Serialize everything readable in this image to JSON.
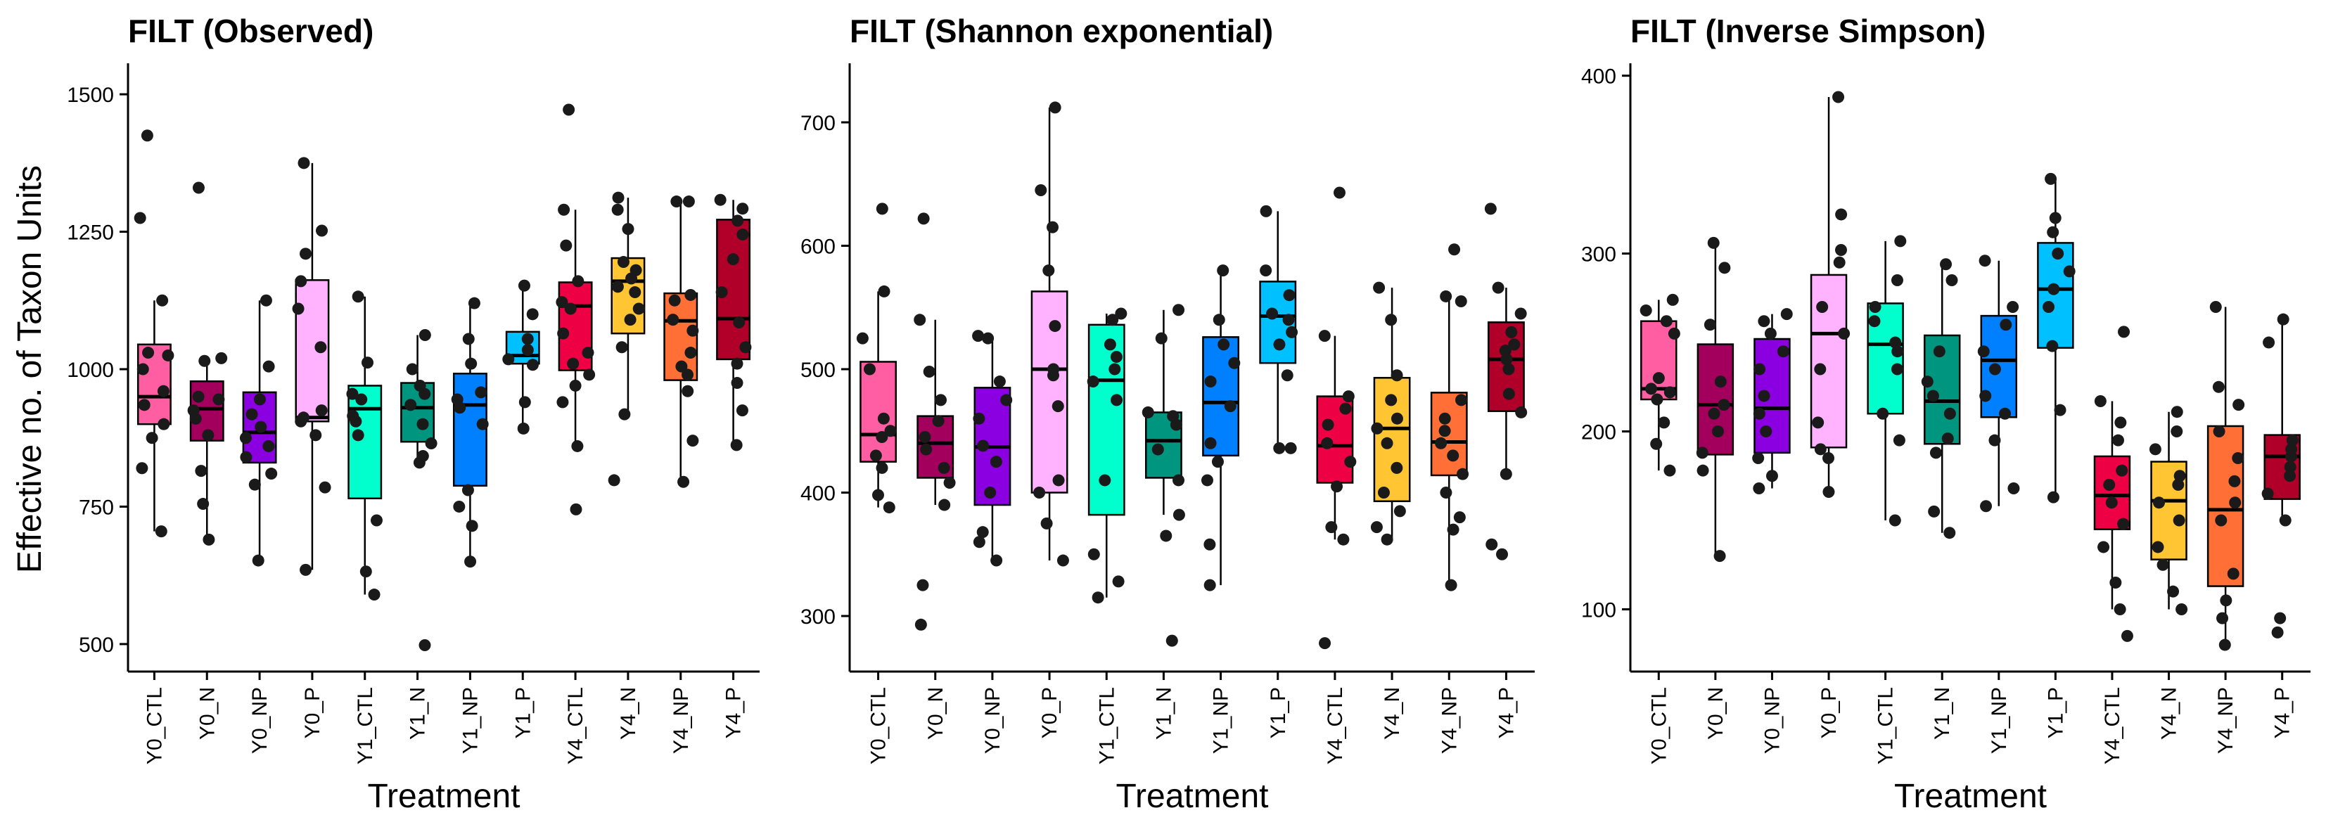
{
  "chart_data": [
    {
      "type": "box",
      "title": "FILT (Observed)",
      "xlabel": "Treatment",
      "ylabel": "Effective no. of Taxon Units",
      "categories": [
        "Y0_CTL",
        "Y0_N",
        "Y0_NP",
        "Y0_P",
        "Y1_CTL",
        "Y1_N",
        "Y1_NP",
        "Y1_P",
        "Y4_CTL",
        "Y4_N",
        "Y4_NP",
        "Y4_P"
      ],
      "colors": [
        "#FF5FA2",
        "#A3005D",
        "#8B00E0",
        "#FFB3FF",
        "#00FFCC",
        "#00957F",
        "#0080FF",
        "#00C0FF",
        "#EE0044",
        "#FFC533",
        "#FF6F36",
        "#B0002A"
      ],
      "ylim": [
        450,
        1550
      ],
      "yticks": [
        500,
        750,
        1000,
        1250,
        1500
      ],
      "boxes": [
        {
          "q1": 900,
          "median": 950,
          "q3": 1045,
          "wlow": 705,
          "whigh": 1125,
          "outliers": [
            1275,
            1425
          ]
        },
        {
          "q1": 870,
          "median": 928,
          "q3": 978,
          "wlow": 690,
          "whigh": 1020,
          "outliers": [
            1330
          ]
        },
        {
          "q1": 830,
          "median": 885,
          "q3": 958,
          "wlow": 652,
          "whigh": 1125,
          "outliers": []
        },
        {
          "q1": 905,
          "median": 912,
          "q3": 1162,
          "wlow": 635,
          "whigh": 1375,
          "outliers": []
        },
        {
          "q1": 765,
          "median": 928,
          "q3": 970,
          "wlow": 590,
          "whigh": 1132,
          "outliers": []
        },
        {
          "q1": 868,
          "median": 930,
          "q3": 975,
          "wlow": 835,
          "whigh": 1062,
          "outliers": [
            498
          ]
        },
        {
          "q1": 788,
          "median": 935,
          "q3": 992,
          "wlow": 650,
          "whigh": 1120,
          "outliers": []
        },
        {
          "q1": 1010,
          "median": 1025,
          "q3": 1068,
          "wlow": 892,
          "whigh": 1152,
          "outliers": []
        },
        {
          "q1": 998,
          "median": 1115,
          "q3": 1158,
          "wlow": 860,
          "whigh": 1290,
          "outliers": [
            745,
            1472
          ]
        },
        {
          "q1": 1065,
          "median": 1160,
          "q3": 1202,
          "wlow": 918,
          "whigh": 1312,
          "outliers": [
            798
          ]
        },
        {
          "q1": 980,
          "median": 1088,
          "q3": 1138,
          "wlow": 795,
          "whigh": 1305,
          "outliers": []
        },
        {
          "q1": 1018,
          "median": 1092,
          "q3": 1272,
          "wlow": 862,
          "whigh": 1308,
          "outliers": []
        }
      ],
      "points": [
        [
          705,
          820,
          875,
          900,
          935,
          960,
          1000,
          1025,
          1030,
          1125,
          1275,
          1425
        ],
        [
          690,
          755,
          815,
          880,
          910,
          925,
          945,
          950,
          1015,
          1020,
          1330
        ],
        [
          652,
          790,
          810,
          840,
          860,
          875,
          895,
          918,
          945,
          1005,
          1125
        ],
        [
          635,
          785,
          880,
          905,
          912,
          925,
          1040,
          1110,
          1160,
          1210,
          1252,
          1375
        ],
        [
          590,
          632,
          725,
          880,
          905,
          915,
          945,
          955,
          1012,
          1132
        ],
        [
          498,
          830,
          842,
          865,
          900,
          935,
          955,
          970,
          1000,
          1062
        ],
        [
          650,
          715,
          750,
          780,
          900,
          930,
          945,
          958,
          1010,
          1055,
          1120
        ],
        [
          892,
          940,
          1008,
          1018,
          1035,
          1055,
          1100,
          1152
        ],
        [
          745,
          860,
          940,
          970,
          990,
          1010,
          1030,
          1065,
          1110,
          1122,
          1160,
          1225,
          1290,
          1472
        ],
        [
          798,
          918,
          1040,
          1090,
          1110,
          1140,
          1150,
          1165,
          1180,
          1195,
          1255,
          1290,
          1312
        ],
        [
          795,
          870,
          960,
          990,
          1005,
          1030,
          1070,
          1090,
          1125,
          1135,
          1305,
          1305
        ],
        [
          862,
          925,
          975,
          1010,
          1040,
          1085,
          1140,
          1200,
          1245,
          1270,
          1292,
          1308
        ]
      ]
    },
    {
      "type": "box",
      "title": "FILT (Shannon exponential)",
      "xlabel": "Treatment",
      "ylabel": "",
      "categories": [
        "Y0_CTL",
        "Y0_N",
        "Y0_NP",
        "Y0_P",
        "Y1_CTL",
        "Y1_N",
        "Y1_NP",
        "Y1_P",
        "Y4_CTL",
        "Y4_N",
        "Y4_NP",
        "Y4_P"
      ],
      "colors": [
        "#FF5FA2",
        "#A3005D",
        "#8B00E0",
        "#FFB3FF",
        "#00FFCC",
        "#00957F",
        "#0080FF",
        "#00C0FF",
        "#EE0044",
        "#FFC533",
        "#FF6F36",
        "#B0002A"
      ],
      "ylim": [
        255,
        745
      ],
      "yticks": [
        300,
        400,
        500,
        600,
        700
      ],
      "boxes": [
        {
          "q1": 425,
          "median": 447,
          "q3": 506,
          "wlow": 388,
          "whigh": 563,
          "outliers": [
            630
          ]
        },
        {
          "q1": 412,
          "median": 440,
          "q3": 462,
          "wlow": 390,
          "whigh": 540,
          "outliers": [
            622,
            325,
            293
          ]
        },
        {
          "q1": 390,
          "median": 437,
          "q3": 485,
          "wlow": 345,
          "whigh": 527,
          "outliers": []
        },
        {
          "q1": 400,
          "median": 500,
          "q3": 563,
          "wlow": 345,
          "whigh": 712,
          "outliers": []
        },
        {
          "q1": 382,
          "median": 491,
          "q3": 536,
          "wlow": 315,
          "whigh": 545,
          "outliers": []
        },
        {
          "q1": 412,
          "median": 442,
          "q3": 465,
          "wlow": 382,
          "whigh": 548,
          "outliers": [
            280
          ]
        },
        {
          "q1": 430,
          "median": 473,
          "q3": 526,
          "wlow": 325,
          "whigh": 580,
          "outliers": []
        },
        {
          "q1": 505,
          "median": 543,
          "q3": 571,
          "wlow": 436,
          "whigh": 628,
          "outliers": []
        },
        {
          "q1": 408,
          "median": 438,
          "q3": 478,
          "wlow": 362,
          "whigh": 527,
          "outliers": [
            643,
            278
          ]
        },
        {
          "q1": 393,
          "median": 452,
          "q3": 493,
          "wlow": 362,
          "whigh": 566,
          "outliers": []
        },
        {
          "q1": 414,
          "median": 441,
          "q3": 481,
          "wlow": 325,
          "whigh": 559,
          "outliers": [
            597
          ]
        },
        {
          "q1": 466,
          "median": 508,
          "q3": 538,
          "wlow": 415,
          "whigh": 566,
          "outliers": [
            630,
            358,
            350
          ]
        }
      ],
      "points": [
        [
          388,
          398,
          420,
          430,
          445,
          450,
          460,
          500,
          525,
          563,
          630
        ],
        [
          293,
          325,
          390,
          408,
          420,
          435,
          445,
          458,
          475,
          498,
          540,
          622
        ],
        [
          345,
          360,
          368,
          400,
          425,
          438,
          460,
          475,
          490,
          525,
          527
        ],
        [
          345,
          375,
          400,
          410,
          470,
          495,
          500,
          535,
          580,
          615,
          645,
          712
        ],
        [
          315,
          328,
          350,
          410,
          475,
          490,
          500,
          510,
          520,
          540,
          545
        ],
        [
          280,
          365,
          382,
          410,
          435,
          455,
          462,
          465,
          525,
          548
        ],
        [
          325,
          358,
          410,
          425,
          440,
          470,
          490,
          505,
          520,
          540,
          580
        ],
        [
          436,
          436,
          495,
          520,
          530,
          540,
          545,
          560,
          580,
          628
        ],
        [
          278,
          362,
          372,
          405,
          425,
          440,
          455,
          468,
          478,
          527,
          643
        ],
        [
          362,
          372,
          385,
          400,
          420,
          440,
          452,
          460,
          475,
          495,
          540,
          566
        ],
        [
          325,
          370,
          380,
          400,
          415,
          430,
          440,
          450,
          460,
          475,
          555,
          559,
          597
        ],
        [
          350,
          358,
          415,
          465,
          480,
          500,
          508,
          515,
          520,
          530,
          545,
          566,
          630
        ]
      ]
    },
    {
      "type": "box",
      "title": "FILT (Inverse Simpson)",
      "xlabel": "Treatment",
      "ylabel": "",
      "categories": [
        "Y0_CTL",
        "Y0_N",
        "Y0_NP",
        "Y0_P",
        "Y1_CTL",
        "Y1_N",
        "Y1_NP",
        "Y1_P",
        "Y4_CTL",
        "Y4_N",
        "Y4_NP",
        "Y4_P"
      ],
      "colors": [
        "#FF5FA2",
        "#A3005D",
        "#8B00E0",
        "#FFB3FF",
        "#00FFCC",
        "#00957F",
        "#0080FF",
        "#00C0FF",
        "#EE0044",
        "#FFC533",
        "#FF6F36",
        "#B0002A"
      ],
      "ylim": [
        65,
        405
      ],
      "yticks": [
        100,
        200,
        300,
        400
      ],
      "boxes": [
        {
          "q1": 218,
          "median": 224,
          "q3": 262,
          "wlow": 178,
          "whigh": 274,
          "outliers": []
        },
        {
          "q1": 187,
          "median": 215,
          "q3": 249,
          "wlow": 130,
          "whigh": 306,
          "outliers": []
        },
        {
          "q1": 188,
          "median": 213,
          "q3": 252,
          "wlow": 168,
          "whigh": 266,
          "outliers": []
        },
        {
          "q1": 191,
          "median": 255,
          "q3": 288,
          "wlow": 166,
          "whigh": 388,
          "outliers": []
        },
        {
          "q1": 210,
          "median": 249,
          "q3": 272,
          "wlow": 150,
          "whigh": 307,
          "outliers": []
        },
        {
          "q1": 193,
          "median": 217,
          "q3": 254,
          "wlow": 143,
          "whigh": 294,
          "outliers": []
        },
        {
          "q1": 208,
          "median": 240,
          "q3": 265,
          "wlow": 158,
          "whigh": 296,
          "outliers": []
        },
        {
          "q1": 247,
          "median": 280,
          "q3": 306,
          "wlow": 163,
          "whigh": 342,
          "outliers": []
        },
        {
          "q1": 145,
          "median": 164,
          "q3": 186,
          "wlow": 100,
          "whigh": 217,
          "outliers": [
            256,
            85
          ]
        },
        {
          "q1": 128,
          "median": 161,
          "q3": 183,
          "wlow": 100,
          "whigh": 211,
          "outliers": []
        },
        {
          "q1": 113,
          "median": 156,
          "q3": 203,
          "wlow": 80,
          "whigh": 270,
          "outliers": []
        },
        {
          "q1": 162,
          "median": 186,
          "q3": 198,
          "wlow": 150,
          "whigh": 263,
          "outliers": [
            95,
            87
          ]
        }
      ],
      "points": [
        [
          178,
          193,
          205,
          218,
          222,
          224,
          230,
          255,
          262,
          268,
          274
        ],
        [
          130,
          178,
          188,
          200,
          210,
          215,
          228,
          260,
          292,
          306
        ],
        [
          168,
          175,
          185,
          200,
          210,
          220,
          235,
          245,
          255,
          262,
          266
        ],
        [
          166,
          185,
          190,
          205,
          235,
          255,
          270,
          295,
          302,
          322,
          388
        ],
        [
          150,
          195,
          210,
          235,
          245,
          250,
          262,
          270,
          285,
          307
        ],
        [
          143,
          155,
          188,
          196,
          210,
          220,
          228,
          245,
          285,
          294
        ],
        [
          158,
          168,
          195,
          210,
          220,
          235,
          245,
          260,
          270,
          296
        ],
        [
          163,
          212,
          248,
          270,
          280,
          290,
          300,
          312,
          320,
          342
        ],
        [
          85,
          100,
          115,
          135,
          148,
          160,
          170,
          178,
          195,
          205,
          217,
          256
        ],
        [
          100,
          110,
          125,
          135,
          150,
          160,
          170,
          175,
          190,
          200,
          211
        ],
        [
          80,
          95,
          105,
          120,
          150,
          160,
          172,
          185,
          200,
          215,
          225,
          270
        ],
        [
          87,
          95,
          150,
          165,
          175,
          180,
          186,
          190,
          195,
          250,
          263
        ]
      ]
    }
  ]
}
